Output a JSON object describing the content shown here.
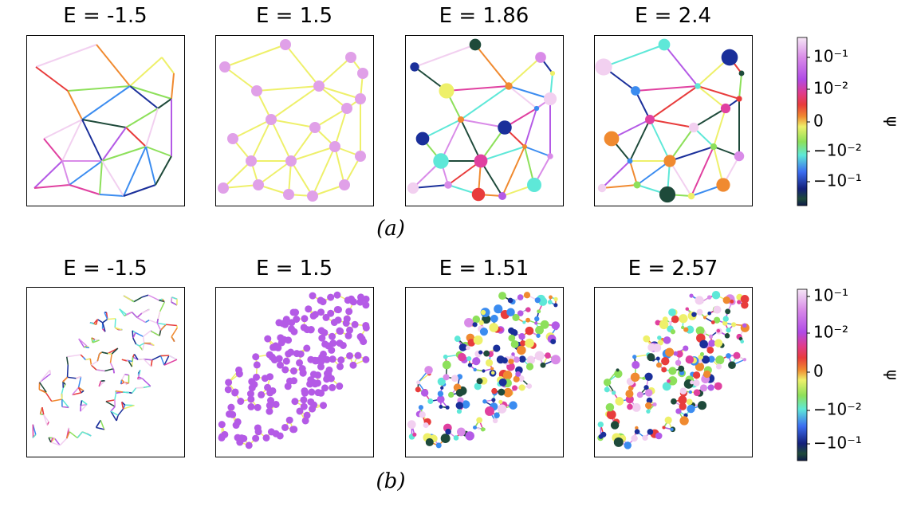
{
  "rows": [
    {
      "label": "(a)",
      "panels": [
        {
          "title": "E = -1.5"
        },
        {
          "title": "E = 1.5"
        },
        {
          "title": "E = 1.86"
        },
        {
          "title": "E = 2.4"
        }
      ],
      "colorbar": {
        "ticks": [
          "10⁻¹",
          "10⁻²",
          "0",
          "−10⁻²",
          "−10⁻¹"
        ],
        "label": "ψ"
      }
    },
    {
      "label": "(b)",
      "panels": [
        {
          "title": "E = -1.5"
        },
        {
          "title": "E = 1.5"
        },
        {
          "title": "E = 1.51"
        },
        {
          "title": "E = 2.57"
        }
      ],
      "colorbar": {
        "ticks": [
          "10⁻¹",
          "10⁻²",
          "0",
          "−10⁻²",
          "−10⁻¹"
        ],
        "label": "ψ"
      }
    }
  ]
}
